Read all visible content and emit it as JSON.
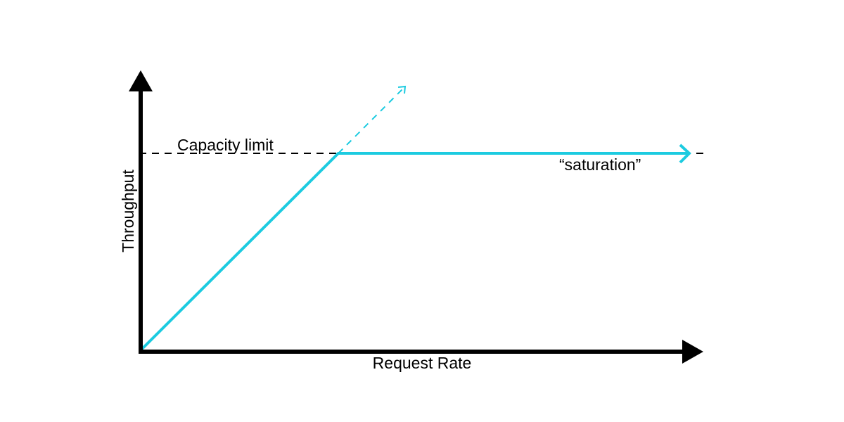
{
  "diagram": {
    "x_axis_label": "Request Rate",
    "y_axis_label": "Throughput",
    "capacity_label": "Capacity limit",
    "saturation_label": "“saturation”"
  },
  "colors": {
    "axis": "#000000",
    "throughput_line": "#1ccbe0",
    "capacity_line": "#000000",
    "background": "#ffffff"
  }
}
